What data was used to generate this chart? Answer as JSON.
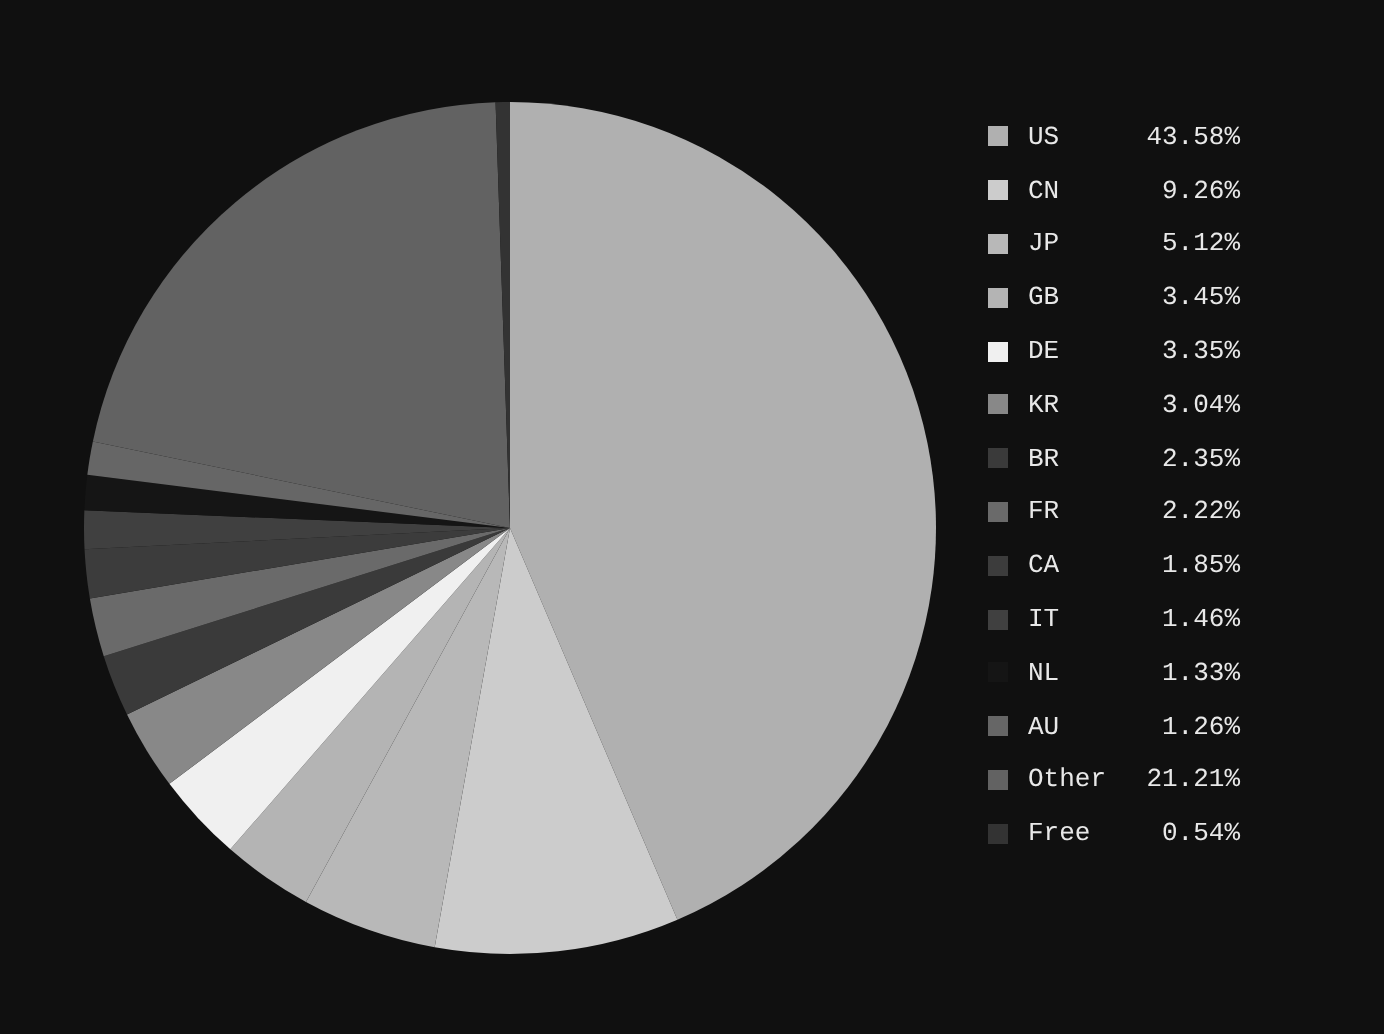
{
  "chart_data": {
    "type": "pie",
    "categories": [
      "US",
      "CN",
      "JP",
      "GB",
      "DE",
      "KR",
      "BR",
      "FR",
      "CA",
      "IT",
      "NL",
      "AU",
      "Other",
      "Free"
    ],
    "values": [
      43.58,
      9.26,
      5.12,
      3.45,
      3.35,
      3.04,
      2.35,
      2.22,
      1.85,
      1.46,
      1.33,
      1.26,
      21.21,
      0.54
    ],
    "value_labels": [
      "43.58%",
      "9.26%",
      "5.12%",
      "3.45%",
      "3.35%",
      "3.04%",
      "2.35%",
      "2.22%",
      "1.85%",
      "1.46%",
      "1.33%",
      "1.26%",
      "21.21%",
      "0.54%"
    ],
    "colors": [
      "#b0b0b0",
      "#cccccc",
      "#b8b8b8",
      "#b4b4b4",
      "#f0f0f0",
      "#888888",
      "#3a3a3a",
      "#6a6a6a",
      "#3c3c3c",
      "#404040",
      "#151515",
      "#666666",
      "#626262",
      "#333333"
    ],
    "legend": "right"
  }
}
